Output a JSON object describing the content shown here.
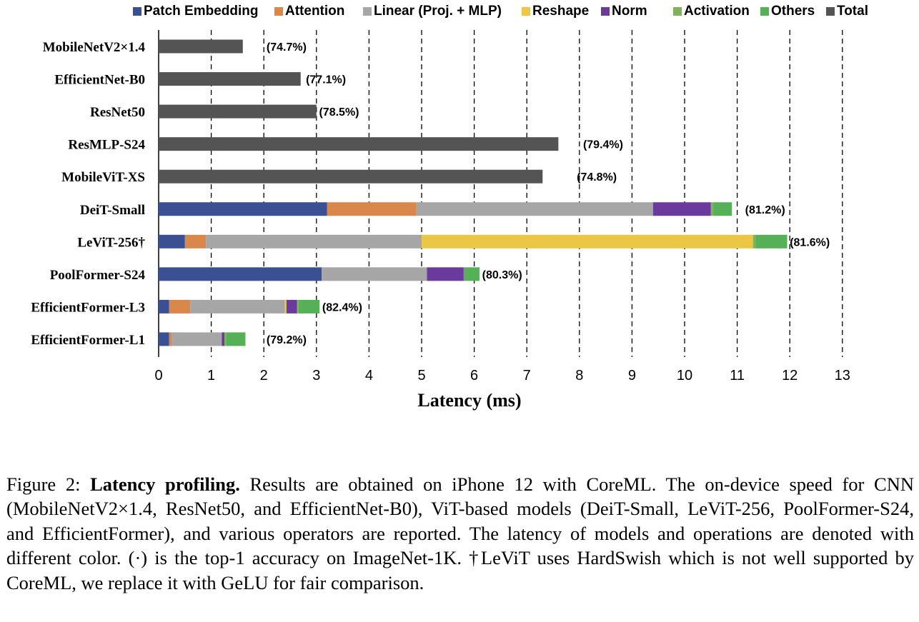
{
  "chart_data": {
    "type": "bar",
    "orientation": "horizontal",
    "stacked": true,
    "xlabel": "Latency (ms)",
    "xlim": [
      0,
      13
    ],
    "xticks": [
      0,
      1,
      2,
      3,
      4,
      5,
      6,
      7,
      8,
      9,
      10,
      11,
      12,
      13
    ],
    "grid": "vertical dashed",
    "legend_position": "top",
    "series": [
      {
        "name": "Patch Embedding",
        "color": "#3b4f93"
      },
      {
        "name": "Attention",
        "color": "#d9874a"
      },
      {
        "name": "Linear (Proj. + MLP)",
        "color": "#a6a6a6"
      },
      {
        "name": "Reshape",
        "color": "#ecc645"
      },
      {
        "name": "Norm",
        "color": "#6a3a9c"
      },
      {
        "name": "Activation",
        "color": "#7fb25a"
      },
      {
        "name": "Others",
        "color": "#55b057"
      },
      {
        "name": "Total",
        "color": "#545454"
      }
    ],
    "models": [
      {
        "name": "MobileNetV2×1.4",
        "accuracy": "(74.7%)",
        "segments": [
          [
            "Total",
            1.6
          ]
        ]
      },
      {
        "name": "EfficientNet-B0",
        "accuracy": "(77.1%)",
        "segments": [
          [
            "Total",
            2.7
          ]
        ]
      },
      {
        "name": "ResNet50",
        "accuracy": "(78.5%)",
        "segments": [
          [
            "Total",
            3.0
          ]
        ]
      },
      {
        "name": "ResMLP-S24",
        "accuracy": "(79.4%)",
        "segments": [
          [
            "Total",
            7.6
          ]
        ]
      },
      {
        "name": "MobileViT-XS",
        "accuracy": "(74.8%)",
        "segments": [
          [
            "Total",
            7.3
          ]
        ]
      },
      {
        "name": "DeiT-Small",
        "accuracy": "(81.2%)",
        "segments": [
          [
            "Patch Embedding",
            3.2
          ],
          [
            "Attention",
            1.7
          ],
          [
            "Linear (Proj. + MLP)",
            4.5
          ],
          [
            "Norm",
            1.1
          ],
          [
            "Activation",
            0.05
          ],
          [
            "Others",
            0.35
          ]
        ]
      },
      {
        "name": "LeViT-256†",
        "accuracy": "(81.6%)",
        "segments": [
          [
            "Patch Embedding",
            0.5
          ],
          [
            "Attention",
            0.4
          ],
          [
            "Linear (Proj. + MLP)",
            4.1
          ],
          [
            "Reshape",
            6.3
          ],
          [
            "Activation",
            0.05
          ],
          [
            "Others",
            0.6
          ]
        ]
      },
      {
        "name": "PoolFormer-S24",
        "accuracy": "(80.3%)",
        "segments": [
          [
            "Patch Embedding",
            3.1
          ],
          [
            "Linear (Proj. + MLP)",
            2.0
          ],
          [
            "Norm",
            0.7
          ],
          [
            "Others",
            0.3
          ]
        ]
      },
      {
        "name": "EfficientFormer-L3",
        "accuracy": "(82.4%)",
        "segments": [
          [
            "Patch Embedding",
            0.2
          ],
          [
            "Attention",
            0.4
          ],
          [
            "Linear (Proj. + MLP)",
            1.8
          ],
          [
            "Reshape",
            0.03
          ],
          [
            "Norm",
            0.2
          ],
          [
            "Activation",
            0.03
          ],
          [
            "Others",
            0.4
          ]
        ]
      },
      {
        "name": "EfficientFormer-L1",
        "accuracy": "(79.2%)",
        "segments": [
          [
            "Patch Embedding",
            0.2
          ],
          [
            "Attention",
            0.05
          ],
          [
            "Linear (Proj. + MLP)",
            0.95
          ],
          [
            "Norm",
            0.05
          ],
          [
            "Activation",
            0.03
          ],
          [
            "Others",
            0.37
          ]
        ]
      }
    ]
  },
  "caption": {
    "prefix": "Figure 2: ",
    "lead": "Latency profiling.",
    "body": " Results are obtained on iPhone 12 with CoreML. The on-device speed for CNN (MobileNetV2×1.4, ResNet50, and EfficientNet-B0), ViT-based models (DeiT-Small, LeViT-256, PoolFormer-S24, and EfficientFormer), and various operators are reported. The latency of models and operations are denoted with different color. (·) is the top-1 accuracy on ImageNet-1K. †LeViT uses HardSwish which is not well supported by CoreML, we replace it with GeLU for fair comparison."
  }
}
